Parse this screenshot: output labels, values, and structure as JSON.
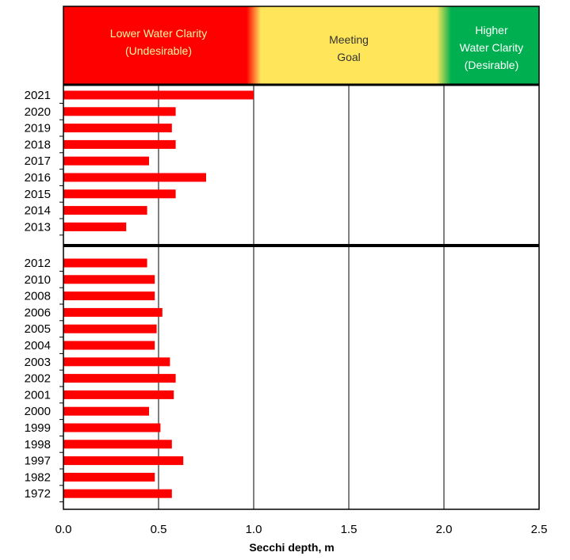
{
  "chart_data": {
    "type": "bar",
    "orientation": "horizontal",
    "xlabel": "Secchi depth, m",
    "xlim": [
      0,
      2.5
    ],
    "x_ticks": [
      "0.0",
      "0.5",
      "1.0",
      "1.5",
      "2.0",
      "2.5"
    ],
    "grid": "vertical lines at 0.5, 1.0, 1.5, 2.0",
    "bar_color": "#ff0000",
    "clarity_bands": [
      {
        "lines": [
          "Lower Water Clarity",
          "(Undesirable)"
        ],
        "from": 0,
        "to": 1.0,
        "color": "#ff0000",
        "text_color": "#fff6a0"
      },
      {
        "lines": [
          "Meeting",
          "Goal"
        ],
        "from": 1.0,
        "to": 2.0,
        "color": "#ffe55a",
        "text_color": "#333333"
      },
      {
        "lines": [
          "Higher",
          "Water Clarity",
          "(Desirable)"
        ],
        "from": 2.0,
        "to": 2.5,
        "color": "#00b050",
        "text_color": "#ffffff"
      }
    ],
    "groups": [
      {
        "categories": [
          "2021",
          "2020",
          "2019",
          "2018",
          "2017",
          "2016",
          "2015",
          "2014",
          "2013"
        ],
        "values": [
          1.0,
          0.59,
          0.57,
          0.59,
          0.45,
          0.75,
          0.59,
          0.44,
          0.33
        ]
      },
      {
        "categories": [
          "2012",
          "2010",
          "2008",
          "2006",
          "2005",
          "2004",
          "2003",
          "2002",
          "2001",
          "2000",
          "1999",
          "1998",
          "1997",
          "1982",
          "1972"
        ],
        "values": [
          0.44,
          0.48,
          0.48,
          0.52,
          0.49,
          0.48,
          0.56,
          0.59,
          0.58,
          0.45,
          0.51,
          0.57,
          0.63,
          0.48,
          0.57
        ]
      }
    ]
  }
}
